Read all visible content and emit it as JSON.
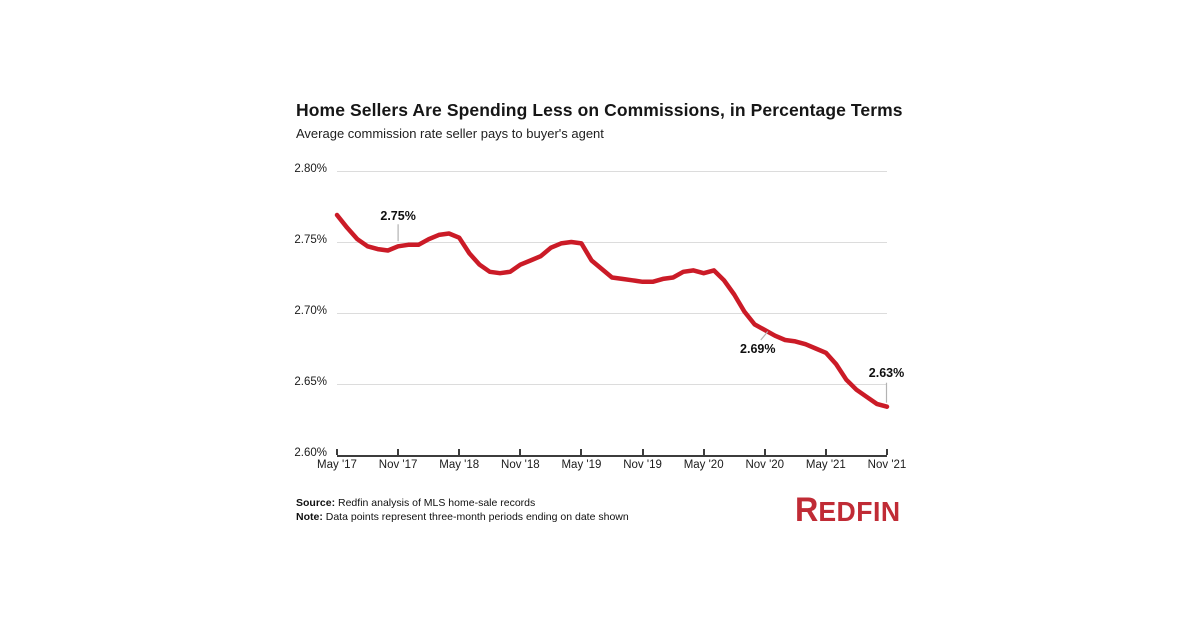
{
  "header": {
    "title": "Home Sellers Are Spending Less on Commissions, in Percentage Terms",
    "subtitle": "Average commission rate seller pays to buyer's agent"
  },
  "chart_data": {
    "type": "line",
    "title": "Home Sellers Are Spending Less on Commissions, in Percentage Terms",
    "subtitle": "Average commission rate seller pays to buyer's agent",
    "ylim": [
      2.6,
      2.8
    ],
    "grid": "horizontal",
    "line_color": "#CB1B27",
    "callout_color": "#b3b3b3",
    "y_tick_labels": [
      "2.80%",
      "2.75%",
      "2.70%",
      "2.65%",
      "2.60%"
    ],
    "x_tick_labels": [
      "May '17",
      "Nov '17",
      "May '18",
      "Nov '18",
      "May '19",
      "Nov '19",
      "May '20",
      "Nov '20",
      "May '21",
      "Nov '21"
    ],
    "x": [
      "May '17",
      "Jun '17",
      "Jul '17",
      "Aug '17",
      "Sep '17",
      "Oct '17",
      "Nov '17",
      "Dec '17",
      "Jan '18",
      "Feb '18",
      "Mar '18",
      "Apr '18",
      "May '18",
      "Jun '18",
      "Jul '18",
      "Aug '18",
      "Sep '18",
      "Oct '18",
      "Nov '18",
      "Dec '18",
      "Jan '19",
      "Feb '19",
      "Mar '19",
      "Apr '19",
      "May '19",
      "Jun '19",
      "Jul '19",
      "Aug '19",
      "Sep '19",
      "Oct '19",
      "Nov '19",
      "Dec '19",
      "Jan '20",
      "Feb '20",
      "Mar '20",
      "Apr '20",
      "May '20",
      "Jun '20",
      "Jul '20",
      "Aug '20",
      "Sep '20",
      "Oct '20",
      "Nov '20",
      "Dec '20",
      "Jan '21",
      "Feb '21",
      "Mar '21",
      "Apr '21",
      "May '21",
      "Jun '21",
      "Jul '21",
      "Aug '21",
      "Sep '21",
      "Oct '21",
      "Nov '21"
    ],
    "series": [
      {
        "name": "Average commission rate seller pays to buyer's agent",
        "values": [
          2.769,
          2.76,
          2.752,
          2.747,
          2.745,
          2.744,
          2.747,
          2.748,
          2.748,
          2.752,
          2.755,
          2.756,
          2.753,
          2.742,
          2.734,
          2.729,
          2.728,
          2.729,
          2.734,
          2.737,
          2.74,
          2.746,
          2.749,
          2.75,
          2.749,
          2.737,
          2.731,
          2.725,
          2.724,
          2.723,
          2.722,
          2.722,
          2.724,
          2.725,
          2.729,
          2.73,
          2.728,
          2.73,
          2.723,
          2.713,
          2.701,
          2.692,
          2.688,
          2.684,
          2.681,
          2.68,
          2.678,
          2.675,
          2.672,
          2.664,
          2.653,
          2.646,
          2.641,
          2.636,
          2.634
        ]
      }
    ],
    "annotations": [
      {
        "text": "2.75%",
        "month_index": 6,
        "value": 2.747,
        "placement": "above"
      },
      {
        "text": "2.69%",
        "month_index": 42,
        "value": 2.688,
        "placement": "below-left"
      },
      {
        "text": "2.63%",
        "month_index": 54,
        "value": 2.634,
        "placement": "above-end"
      }
    ]
  },
  "footer": {
    "source_label": "Source:",
    "source_text": " Redfin analysis of MLS home-sale records",
    "note_label": "Note:",
    "note_text": " Data points represent three-month periods ending on date shown",
    "logo_r": "R",
    "logo_rest": "EDFIN"
  }
}
